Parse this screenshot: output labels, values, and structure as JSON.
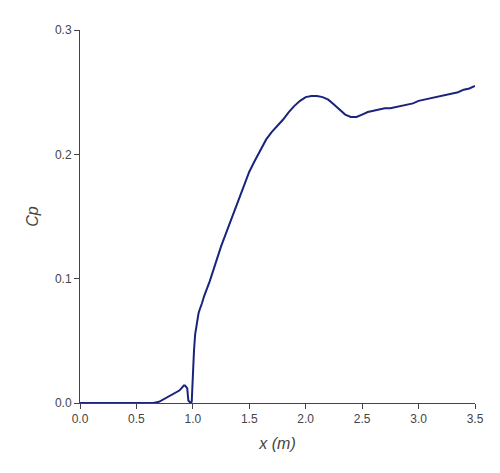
{
  "chart_data": {
    "type": "line",
    "xlabel": "x (m)",
    "ylabel": "Cp",
    "color": "#1a237e",
    "grid": false,
    "xlim": [
      0.0,
      3.5
    ],
    "ylim": [
      0.0,
      0.3
    ],
    "xticks": [
      {
        "value": 0.0,
        "label": "0.0"
      },
      0.5,
      {
        "value": 1.0,
        "label": "1.0"
      },
      1.5,
      {
        "value": 2.0,
        "label": "2.0"
      },
      2.5,
      {
        "value": 3.0,
        "label": "3.0"
      },
      3.5
    ],
    "yticks": [
      {
        "value": 0.0,
        "label": "0.0"
      },
      0.1,
      0.2,
      0.3
    ],
    "x": [
      0.0,
      0.05,
      0.1,
      0.15,
      0.2,
      0.25,
      0.3,
      0.35,
      0.4,
      0.45,
      0.5,
      0.55,
      0.6,
      0.65,
      0.7,
      0.72,
      0.74,
      0.76,
      0.78,
      0.8,
      0.82,
      0.84,
      0.86,
      0.88,
      0.9,
      0.91,
      0.92,
      0.93,
      0.94,
      0.95,
      0.96,
      0.97,
      0.98,
      0.99,
      1.0,
      1.01,
      1.02,
      1.03,
      1.04,
      1.05,
      1.06,
      1.07,
      1.08,
      1.09,
      1.1,
      1.15,
      1.2,
      1.25,
      1.3,
      1.35,
      1.4,
      1.45,
      1.5,
      1.55,
      1.6,
      1.65,
      1.7,
      1.75,
      1.8,
      1.85,
      1.9,
      1.95,
      2.0,
      2.05,
      2.1,
      2.15,
      2.2,
      2.25,
      2.3,
      2.35,
      2.4,
      2.45,
      2.5,
      2.55,
      2.6,
      2.65,
      2.7,
      2.75,
      2.8,
      2.85,
      2.9,
      2.95,
      3.0,
      3.05,
      3.1,
      3.15,
      3.2,
      3.25,
      3.3,
      3.35,
      3.4,
      3.45,
      3.5
    ],
    "values": [
      0.0,
      0.0,
      0.0,
      0.0,
      0.0,
      0.0,
      0.0,
      0.0,
      0.0,
      0.0,
      0.0,
      0.0,
      0.0,
      0.0,
      0.001,
      0.002,
      0.003,
      0.004,
      0.005,
      0.006,
      0.007,
      0.008,
      0.009,
      0.01,
      0.012,
      0.013,
      0.014,
      0.014,
      0.013,
      0.012,
      0.002,
      0.001,
      0.0,
      0.001,
      0.03,
      0.042,
      0.055,
      0.062,
      0.068,
      0.072,
      0.075,
      0.077,
      0.08,
      0.083,
      0.086,
      0.098,
      0.112,
      0.126,
      0.138,
      0.15,
      0.162,
      0.174,
      0.186,
      0.195,
      0.204,
      0.212,
      0.218,
      0.223,
      0.228,
      0.234,
      0.239,
      0.243,
      0.246,
      0.247,
      0.247,
      0.246,
      0.244,
      0.24,
      0.236,
      0.232,
      0.23,
      0.23,
      0.232,
      0.234,
      0.235,
      0.236,
      0.237,
      0.237,
      0.238,
      0.239,
      0.24,
      0.241,
      0.243,
      0.244,
      0.245,
      0.246,
      0.247,
      0.248,
      0.249,
      0.25,
      0.252,
      0.253,
      0.255
    ]
  }
}
